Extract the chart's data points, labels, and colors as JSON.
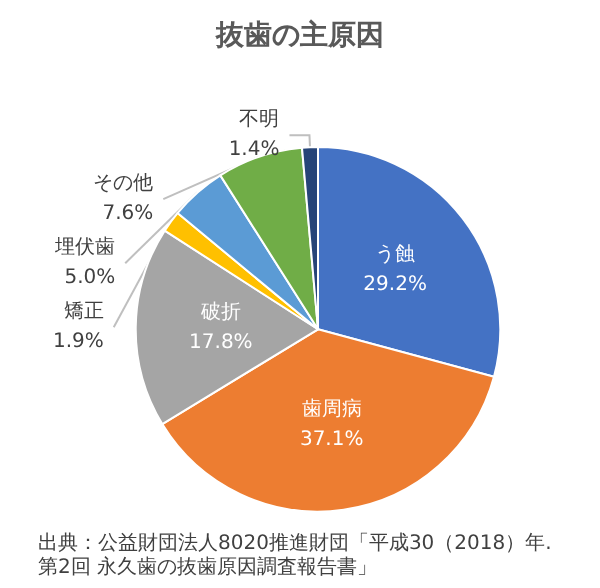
{
  "chart_data": {
    "type": "pie",
    "title": "抜歯の主原因",
    "categories": [
      "う蝕",
      "歯周病",
      "破折",
      "矯正",
      "埋伏歯",
      "その他",
      "不明"
    ],
    "values": [
      29.2,
      37.1,
      17.8,
      1.9,
      5.0,
      7.6,
      1.4
    ],
    "value_labels": [
      "29.2%",
      "37.1%",
      "17.8%",
      "1.9%",
      "5.0%",
      "7.6%",
      "1.4%"
    ],
    "colors": [
      "#4472c4",
      "#ed7d31",
      "#a5a5a5",
      "#ffc000",
      "#5b9bd5",
      "#70ad47",
      "#264478"
    ],
    "legend": false,
    "annotations": [
      "出典：公益財団法人8020推進財団「平成30（2018）年.第2回 永久歯の抜歯原因調査報告書」"
    ]
  }
}
